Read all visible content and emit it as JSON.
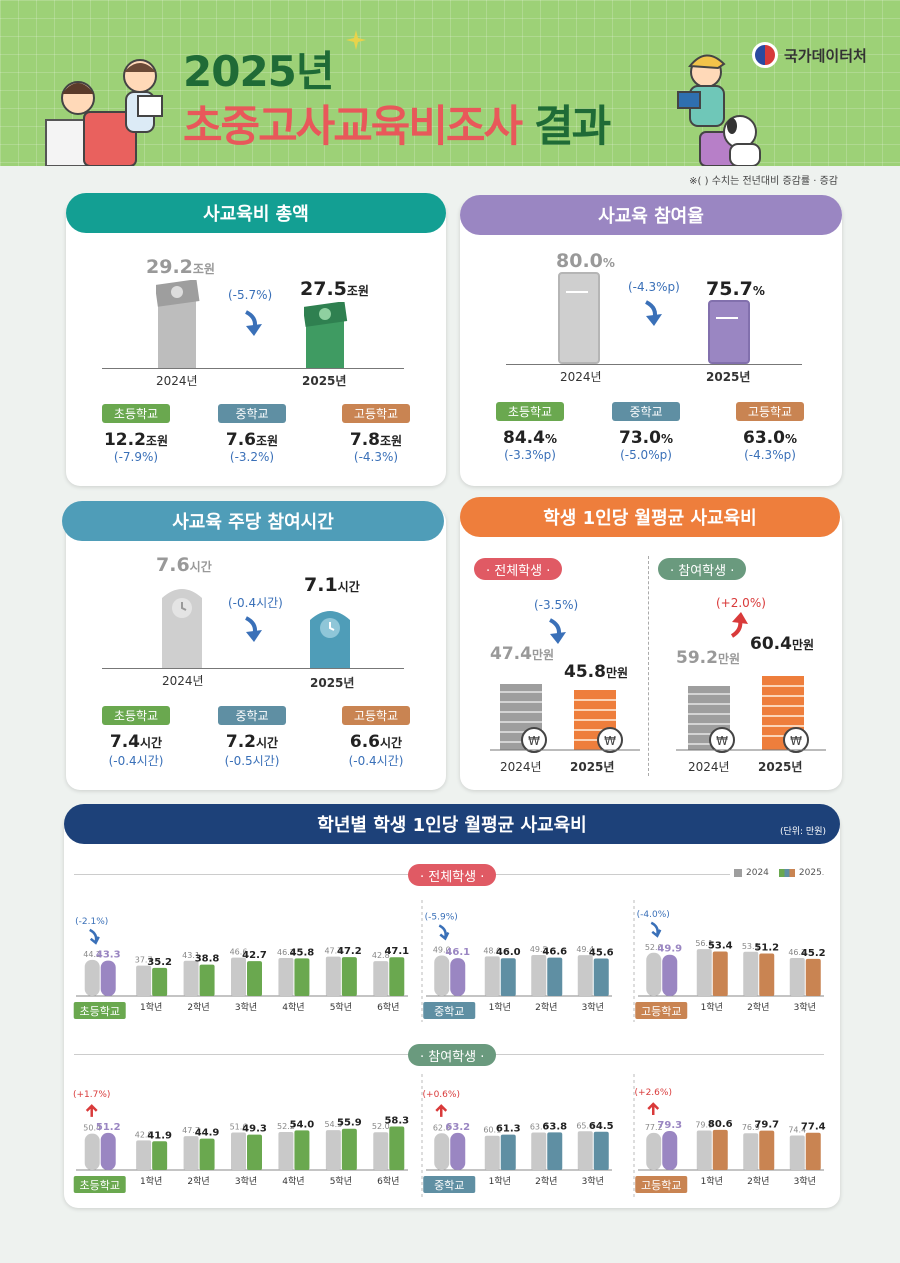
{
  "header": {
    "title_year": "2025년",
    "title_main": "초중고사교육비조사",
    "title_suffix": "결과",
    "agency": "국가데이터처",
    "note": "※(    ) 수치는 전년대비 증감률 · 증감"
  },
  "colors": {
    "green": "#1f6b36",
    "red": "#e8585a",
    "teal": "#139f93",
    "purple": "#9a86c2",
    "blue": "#4f9db8",
    "orange": "#ee7e3c",
    "navy": "#1d4179",
    "elem": "#6aa84f",
    "mid": "#5f8fa3",
    "high": "#c98452",
    "gray": "#c9c9c9"
  },
  "total": {
    "title": "사교육비 총액",
    "y2024": "29.2",
    "y2025": "27.5",
    "unit": "조원",
    "change": "(-5.7%)",
    "x2024": "2024년",
    "x2025": "2025년",
    "schools": [
      {
        "name": "초등학교",
        "value": "12.2",
        "unit": "조원",
        "change": "(-7.9%)"
      },
      {
        "name": "중학교",
        "value": "7.6",
        "unit": "조원",
        "change": "(-3.2%)"
      },
      {
        "name": "고등학교",
        "value": "7.8",
        "unit": "조원",
        "change": "(-4.3%)"
      }
    ]
  },
  "rate": {
    "title": "사교육 참여율",
    "y2024": "80.0",
    "y2025": "75.7",
    "unit": "%",
    "change": "(-4.3%p)",
    "x2024": "2024년",
    "x2025": "2025년",
    "schools": [
      {
        "name": "초등학교",
        "value": "84.4",
        "unit": "%",
        "change": "(-3.3%p)"
      },
      {
        "name": "중학교",
        "value": "73.0",
        "unit": "%",
        "change": "(-5.0%p)"
      },
      {
        "name": "고등학교",
        "value": "63.0",
        "unit": "%",
        "change": "(-4.3%p)"
      }
    ]
  },
  "hours": {
    "title": "사교육 주당 참여시간",
    "y2024": "7.6",
    "y2025": "7.1",
    "unit": "시간",
    "change": "(-0.4시간)",
    "x2024": "2024년",
    "x2025": "2025년",
    "schools": [
      {
        "name": "초등학교",
        "value": "7.4",
        "unit": "시간",
        "change": "(-0.4시간)"
      },
      {
        "name": "중학교",
        "value": "7.2",
        "unit": "시간",
        "change": "(-0.5시간)"
      },
      {
        "name": "고등학교",
        "value": "6.6",
        "unit": "시간",
        "change": "(-0.4시간)"
      }
    ]
  },
  "monthly": {
    "title": "학생 1인당 월평균 사교육비",
    "unit": "만원",
    "x2024": "2024년",
    "x2025": "2025년",
    "all": {
      "label": "· 전체학생 ·",
      "y2024": "47.4",
      "y2025": "45.8",
      "change": "(-3.5%)"
    },
    "part": {
      "label": "· 참여학생 ·",
      "y2024": "59.2",
      "y2025": "60.4",
      "change": "(+2.0%)"
    }
  },
  "grade": {
    "title": "학년별 학생 1인당 월평균 사교육비",
    "unit_note": "(단위: 만원)",
    "legend_2024": "2024",
    "legend_2025": "2025",
    "section_all": "· 전체학생 ·",
    "section_part": "· 참여학생 ·"
  },
  "chart_data": [
    {
      "type": "bar",
      "title": "학년별 학생 1인당 월평균 사교육비 · 전체학생 · 초등학교",
      "categories": [
        "초등학교",
        "1학년",
        "2학년",
        "3학년",
        "4학년",
        "5학년",
        "6학년"
      ],
      "series": [
        {
          "name": "2024",
          "values": [
            44.2,
            37.7,
            43.1,
            46.6,
            46.2,
            47.7,
            42.8
          ]
        },
        {
          "name": "2025",
          "values": [
            43.3,
            35.2,
            38.8,
            42.7,
            45.8,
            47.2,
            47.1
          ]
        }
      ],
      "change": "(-2.1%)"
    },
    {
      "type": "bar",
      "title": "학년별 학생 1인당 월평균 사교육비 · 전체학생 · 중학교",
      "categories": [
        "중학교",
        "1학년",
        "2학년",
        "3학년"
      ],
      "series": [
        {
          "name": "2024",
          "values": [
            49.0,
            48.0,
            49.5,
            49.4
          ]
        },
        {
          "name": "2025",
          "values": [
            46.1,
            46.0,
            46.6,
            45.6
          ]
        }
      ],
      "change": "(-5.9%)"
    },
    {
      "type": "bar",
      "title": "학년별 학생 1인당 월평균 사교육비 · 전체학생 · 고등학교",
      "categories": [
        "고등학교",
        "1학년",
        "2학년",
        "3학년"
      ],
      "series": [
        {
          "name": "2024",
          "values": [
            52.0,
            56.1,
            53.1,
            46.2
          ]
        },
        {
          "name": "2025",
          "values": [
            49.9,
            53.4,
            51.2,
            45.2
          ]
        }
      ],
      "change": "(-4.0%)"
    },
    {
      "type": "bar",
      "title": "학년별 학생 1인당 월평균 사교육비 · 참여학생 · 초등학교",
      "categories": [
        "초등학교",
        "1학년",
        "2학년",
        "3학년",
        "4학년",
        "5학년",
        "6학년"
      ],
      "series": [
        {
          "name": "2024",
          "values": [
            50.4,
            42.9,
            47.7,
            51.6,
            52.2,
            54.3,
            52.0
          ]
        },
        {
          "name": "2025",
          "values": [
            51.2,
            41.9,
            44.9,
            49.3,
            54.0,
            55.9,
            58.3
          ]
        }
      ],
      "change": "(+1.7%)"
    },
    {
      "type": "bar",
      "title": "학년별 학생 1인당 월평균 사교육비 · 참여학생 · 중학교",
      "categories": [
        "중학교",
        "1학년",
        "2학년",
        "3학년"
      ],
      "series": [
        {
          "name": "2024",
          "values": [
            62.8,
            60.1,
            63.6,
            65.0
          ]
        },
        {
          "name": "2025",
          "values": [
            63.2,
            61.3,
            63.8,
            64.5
          ]
        }
      ],
      "change": "(+0.6%)"
    },
    {
      "type": "bar",
      "title": "학년별 학생 1인당 월평균 사교육비 · 참여학생 · 고등학교",
      "categories": [
        "고등학교",
        "1학년",
        "2학년",
        "3학년"
      ],
      "series": [
        {
          "name": "2024",
          "values": [
            77.2,
            79.9,
            76.9,
            74.4
          ]
        },
        {
          "name": "2025",
          "values": [
            79.3,
            80.6,
            79.7,
            77.4
          ]
        }
      ],
      "change": "(+2.6%)"
    }
  ]
}
